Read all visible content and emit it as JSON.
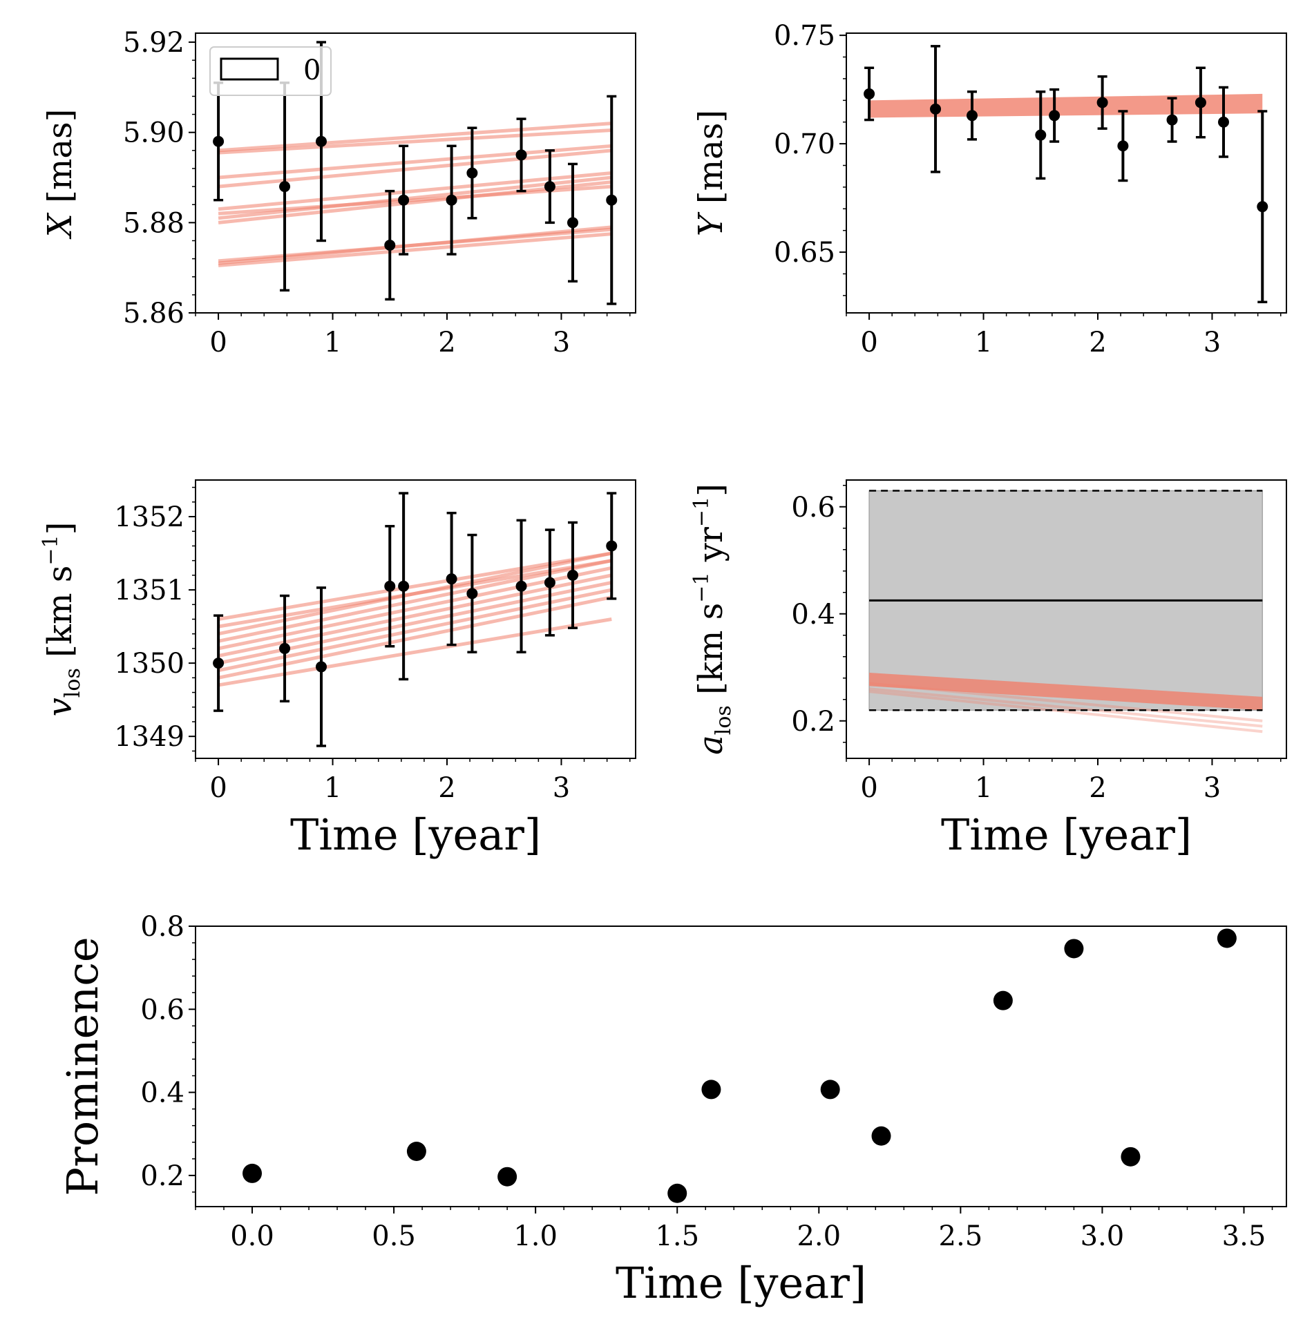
{
  "chart_data": [
    {
      "id": "x",
      "type": "line",
      "ylabel": {
        "var": "X",
        "unit": "[mas]"
      },
      "xlabel": "",
      "xlim": [
        -0.2,
        3.65
      ],
      "ylim": [
        5.86,
        5.922
      ],
      "xticks": [
        "0",
        "1",
        "2",
        "3"
      ],
      "xtick_values": [
        0,
        1,
        2,
        3
      ],
      "yticks": [
        "5.86",
        "5.88",
        "5.90",
        "5.92"
      ],
      "ytick_values": [
        5.86,
        5.88,
        5.9,
        5.92
      ],
      "legend": {
        "label": "0",
        "position": "upper-left"
      },
      "points": {
        "x": [
          0,
          0.58,
          0.9,
          1.5,
          1.62,
          2.04,
          2.22,
          2.65,
          2.9,
          3.1,
          3.44
        ],
        "y": [
          5.898,
          5.888,
          5.898,
          5.875,
          5.885,
          5.885,
          5.891,
          5.895,
          5.888,
          5.88,
          5.885
        ],
        "err": [
          0.013,
          0.023,
          0.022,
          0.012,
          0.012,
          0.012,
          0.01,
          0.008,
          0.008,
          0.013,
          0.023
        ]
      },
      "model_lines": [
        {
          "x": [
            0,
            3.44
          ],
          "y": [
            5.871,
            5.879
          ]
        },
        {
          "x": [
            0,
            3.44
          ],
          "y": [
            5.8705,
            5.8775
          ]
        },
        {
          "x": [
            0,
            3.44
          ],
          "y": [
            5.8715,
            5.8785
          ]
        },
        {
          "x": [
            0,
            3.44
          ],
          "y": [
            5.88,
            5.889
          ]
        },
        {
          "x": [
            0,
            3.44
          ],
          "y": [
            5.881,
            5.89
          ]
        },
        {
          "x": [
            0,
            3.44
          ],
          "y": [
            5.882,
            5.888
          ]
        },
        {
          "x": [
            0,
            3.44
          ],
          "y": [
            5.883,
            5.891
          ]
        },
        {
          "x": [
            0,
            3.44
          ],
          "y": [
            5.888,
            5.896
          ]
        },
        {
          "x": [
            0,
            3.44
          ],
          "y": [
            5.89,
            5.897
          ]
        },
        {
          "x": [
            0,
            3.44
          ],
          "y": [
            5.896,
            5.902
          ]
        },
        {
          "x": [
            0,
            3.44
          ],
          "y": [
            5.8955,
            5.9005
          ]
        }
      ]
    },
    {
      "id": "y",
      "type": "line",
      "ylabel": {
        "var": "Y",
        "unit": "[mas]"
      },
      "xlabel": "",
      "xlim": [
        -0.2,
        3.65
      ],
      "ylim": [
        0.622,
        0.751
      ],
      "xticks": [
        "0",
        "1",
        "2",
        "3"
      ],
      "xtick_values": [
        0,
        1,
        2,
        3
      ],
      "yticks": [
        "0.65",
        "0.70",
        "0.75"
      ],
      "ytick_values": [
        0.65,
        0.7,
        0.75
      ],
      "points": {
        "x": [
          0,
          0.58,
          0.9,
          1.5,
          1.62,
          2.04,
          2.22,
          2.65,
          2.9,
          3.1,
          3.44
        ],
        "y": [
          0.723,
          0.716,
          0.713,
          0.704,
          0.713,
          0.719,
          0.699,
          0.711,
          0.719,
          0.71,
          0.671
        ],
        "err": [
          0.012,
          0.029,
          0.011,
          0.02,
          0.012,
          0.012,
          0.016,
          0.01,
          0.016,
          0.016,
          0.044
        ]
      },
      "model_band": {
        "x": [
          0,
          3.44
        ],
        "lower": [
          0.712,
          0.714
        ],
        "upper": [
          0.72,
          0.723
        ]
      }
    },
    {
      "id": "vlos",
      "type": "line",
      "ylabel": {
        "var": "v",
        "sub": "los",
        "unit": "[km s",
        "sup": "−1",
        "close": "]"
      },
      "xlabel": "Time [year]",
      "xlim": [
        -0.2,
        3.65
      ],
      "ylim": [
        1348.7,
        1352.5
      ],
      "xticks": [
        "0",
        "1",
        "2",
        "3"
      ],
      "xtick_values": [
        0,
        1,
        2,
        3
      ],
      "yticks": [
        "1349",
        "1350",
        "1351",
        "1352"
      ],
      "ytick_values": [
        1349,
        1350,
        1351,
        1352
      ],
      "points": {
        "x": [
          0,
          0.58,
          0.9,
          1.5,
          1.62,
          2.04,
          2.22,
          2.65,
          2.9,
          3.1,
          3.44
        ],
        "y": [
          1350.0,
          1350.2,
          1349.95,
          1351.05,
          1351.05,
          1351.15,
          1350.95,
          1351.05,
          1351.1,
          1351.2,
          1351.6
        ],
        "err": [
          0.65,
          0.72,
          1.08,
          0.82,
          1.27,
          0.9,
          0.8,
          0.9,
          0.72,
          0.72,
          0.72
        ]
      },
      "model_lines": [
        {
          "x": [
            0,
            3.44
          ],
          "y": [
            1349.7,
            1350.6
          ]
        },
        {
          "x": [
            0,
            3.44
          ],
          "y": [
            1349.8,
            1350.9
          ]
        },
        {
          "x": [
            0,
            3.44
          ],
          "y": [
            1349.9,
            1351.0
          ]
        },
        {
          "x": [
            0,
            3.44
          ],
          "y": [
            1350.0,
            1351.1
          ]
        },
        {
          "x": [
            0,
            3.44
          ],
          "y": [
            1350.1,
            1351.2
          ]
        },
        {
          "x": [
            0,
            3.44
          ],
          "y": [
            1350.2,
            1351.3
          ]
        },
        {
          "x": [
            0,
            3.44
          ],
          "y": [
            1350.3,
            1351.4
          ]
        },
        {
          "x": [
            0,
            3.44
          ],
          "y": [
            1350.4,
            1351.5
          ]
        },
        {
          "x": [
            0,
            3.44
          ],
          "y": [
            1350.5,
            1351.4
          ]
        },
        {
          "x": [
            0,
            3.44
          ],
          "y": [
            1350.6,
            1351.5
          ]
        }
      ]
    },
    {
      "id": "alos",
      "type": "area",
      "ylabel": {
        "var": "a",
        "sub": "los",
        "unit": "[km s",
        "sup": "−1",
        "unit2": " yr",
        "sup2": "−1",
        "close": "]"
      },
      "xlabel": "Time [year]",
      "xlim": [
        -0.2,
        3.65
      ],
      "ylim": [
        0.13,
        0.65
      ],
      "xticks": [
        "0",
        "1",
        "2",
        "3"
      ],
      "xtick_values": [
        0,
        1,
        2,
        3
      ],
      "yticks": [
        "0.2",
        "0.4",
        "0.6"
      ],
      "ytick_values": [
        0.2,
        0.4,
        0.6
      ],
      "band": {
        "x": [
          0,
          3.44
        ],
        "lower": 0.22,
        "upper": 0.63,
        "center": 0.425
      },
      "model_band": {
        "x": [
          0,
          3.44
        ],
        "lower": [
          0.265,
          0.22
        ],
        "upper": [
          0.29,
          0.245
        ]
      },
      "model_lines": [
        {
          "x": [
            0,
            3.44
          ],
          "y": [
            0.255,
            0.18
          ]
        },
        {
          "x": [
            0,
            3.44
          ],
          "y": [
            0.26,
            0.19
          ]
        },
        {
          "x": [
            0,
            3.44
          ],
          "y": [
            0.27,
            0.2
          ]
        }
      ],
      "colors": {
        "band": "#c8c8c8",
        "model": "#f0806c"
      }
    },
    {
      "id": "prominence",
      "type": "scatter",
      "ylabel": "Prominence",
      "xlabel": "Time [year]",
      "xlim": [
        -0.2,
        3.65
      ],
      "ylim": [
        0.125,
        0.8
      ],
      "xticks": [
        "0.0",
        "0.5",
        "1.0",
        "1.5",
        "2.0",
        "2.5",
        "3.0",
        "3.5"
      ],
      "xtick_values": [
        0,
        0.5,
        1,
        1.5,
        2,
        2.5,
        3,
        3.5
      ],
      "yticks": [
        "0.2",
        "0.4",
        "0.6",
        "0.8"
      ],
      "ytick_values": [
        0.2,
        0.4,
        0.6,
        0.8
      ],
      "x": [
        0.0,
        0.58,
        0.9,
        1.5,
        1.62,
        2.04,
        2.22,
        2.65,
        2.9,
        3.1,
        3.44
      ],
      "y": [
        0.205,
        0.258,
        0.197,
        0.157,
        0.407,
        0.407,
        0.295,
        0.621,
        0.746,
        0.245,
        0.771
      ]
    }
  ],
  "colors": {
    "model": "#f0806c",
    "points": "#000000",
    "band": "#c8c8c8"
  }
}
